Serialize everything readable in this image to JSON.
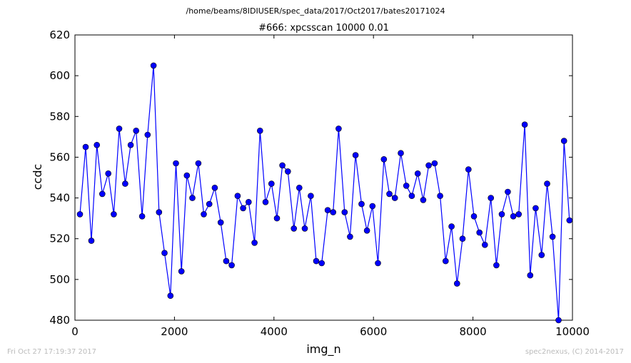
{
  "suptitle": "/home/beams/8IDIUSER/spec_data/2017/Oct2017/bates20171024",
  "footer": {
    "left": "Fri Oct 27 17:19:37 2017",
    "right": "spec2nexus, (C) 2014-2017"
  },
  "chart_data": {
    "type": "line",
    "title": "#666: xpcsscan 10000 0.01",
    "xlabel": "img_n",
    "ylabel": "ccdc",
    "xlim": [
      0,
      10000
    ],
    "ylim": [
      480,
      620
    ],
    "xticks": [
      0,
      2000,
      4000,
      6000,
      8000,
      10000
    ],
    "yticks": [
      480,
      500,
      520,
      540,
      560,
      580,
      600,
      620
    ],
    "grid": false,
    "colors": {
      "line": "#0000ff",
      "marker": "#0000ff"
    },
    "series": [
      {
        "x": [
          100,
          215,
          330,
          440,
          550,
          670,
          780,
          890,
          1010,
          1120,
          1230,
          1350,
          1460,
          1580,
          1690,
          1800,
          1920,
          2030,
          2140,
          2250,
          2360,
          2480,
          2590,
          2700,
          2810,
          2930,
          3040,
          3150,
          3270,
          3380,
          3490,
          3610,
          3720,
          3830,
          3950,
          4060,
          4170,
          4280,
          4400,
          4510,
          4620,
          4740,
          4850,
          4960,
          5080,
          5190,
          5300,
          5420,
          5530,
          5640,
          5760,
          5870,
          5980,
          6090,
          6210,
          6320,
          6430,
          6550,
          6660,
          6770,
          6890,
          7000,
          7110,
          7230,
          7340,
          7450,
          7570,
          7680,
          7790,
          7910,
          8020,
          8130,
          8240,
          8360,
          8470,
          8580,
          8700,
          8810,
          8920,
          9040,
          9150,
          9260,
          9380,
          9490,
          9600,
          9720,
          9830,
          9940
        ],
        "y": [
          532,
          565,
          519,
          566,
          542,
          552,
          532,
          574,
          547,
          566,
          573,
          531,
          571,
          605,
          533,
          513,
          492,
          557,
          504,
          551,
          540,
          557,
          532,
          537,
          545,
          528,
          509,
          507,
          541,
          535,
          538,
          518,
          573,
          538,
          547,
          530,
          556,
          553,
          525,
          545,
          525,
          541,
          509,
          508,
          534,
          533,
          574,
          533,
          521,
          561,
          537,
          524,
          536,
          508,
          559,
          542,
          540,
          562,
          546,
          541,
          552,
          539,
          556,
          557,
          541,
          509,
          526,
          498,
          520,
          554,
          531,
          523,
          517,
          540,
          507,
          532,
          543,
          531,
          532,
          576,
          502,
          535,
          512,
          547,
          521,
          480,
          568,
          529
        ]
      }
    ]
  }
}
